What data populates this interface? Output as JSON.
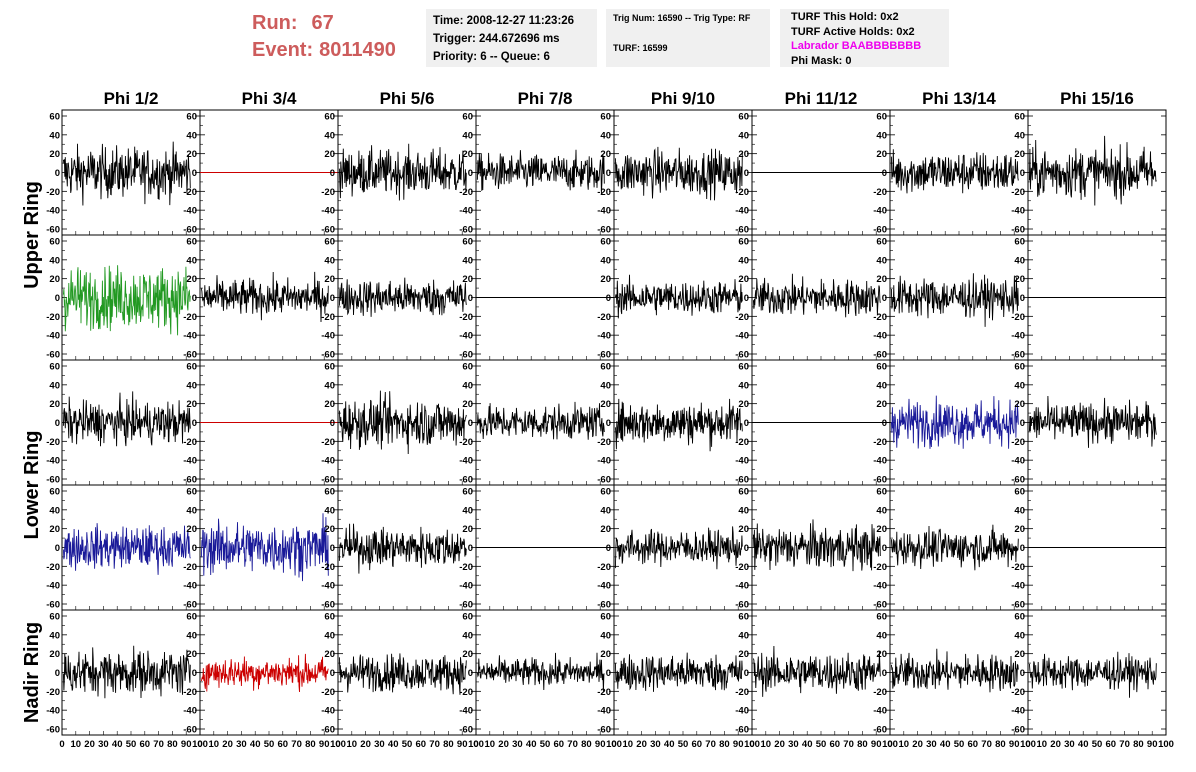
{
  "header": {
    "run_label": "Run:",
    "run_value": "67",
    "event_label": "Event:",
    "event_value": "8011490",
    "time": "Time: 2008-12-27 11:23:26",
    "trigger": "Trigger: 244.672696 ms",
    "priority_queue": "Priority: 6 -- Queue: 6",
    "trig_num_type": "Trig Num: 16590 -- Trig Type: RF",
    "turf": "TURF: 16599",
    "turf_this_hold": "TURF This Hold: 0x2",
    "turf_active_holds": "TURF Active Holds: 0x2",
    "labrador": "Labrador BAABBBBBBB",
    "phi_mask": "Phi Mask: 0",
    "colors": {
      "run_text": "#cd5c5c",
      "labrador_text": "#ee00ee",
      "info_bg": "#f0f0f0"
    }
  },
  "chart_data": {
    "type": "line",
    "columns": [
      "Phi 1/2",
      "Phi 3/4",
      "Phi 5/6",
      "Phi 7/8",
      "Phi 9/10",
      "Phi 11/12",
      "Phi 13/14",
      "Phi 15/16"
    ],
    "ring_labels": [
      {
        "label": "Upper Ring",
        "rows": [
          0,
          1
        ]
      },
      {
        "label": "Lower Ring",
        "rows": [
          2,
          3
        ]
      },
      {
        "label": "Nadir Ring",
        "rows": [
          4
        ]
      }
    ],
    "xlim": [
      0,
      100
    ],
    "ylim": [
      -60,
      60
    ],
    "x_ticks": [
      0,
      10,
      20,
      30,
      40,
      50,
      60,
      70,
      80,
      90,
      100
    ],
    "y_ticks": [
      -60,
      -40,
      -20,
      0,
      20,
      40,
      60
    ],
    "colors": {
      "black": "#000000",
      "red": "#cc0000",
      "green": "#229922",
      "blue": "#1a1a99"
    },
    "panels": [
      [
        {
          "color": "black",
          "trace": "noise",
          "amp": 18
        },
        {
          "color": "red",
          "trace": "flat",
          "amp": 0
        },
        {
          "color": "black",
          "trace": "noise",
          "amp": 16
        },
        {
          "color": "black",
          "trace": "noise",
          "amp": 13
        },
        {
          "color": "black",
          "trace": "noise",
          "amp": 16
        },
        {
          "color": "black",
          "trace": "flat",
          "amp": 0
        },
        {
          "color": "black",
          "trace": "noise",
          "amp": 15
        },
        {
          "color": "black",
          "trace": "noise",
          "amp": 18
        }
      ],
      [
        {
          "color": "green",
          "trace": "noise",
          "amp": 22
        },
        {
          "color": "black",
          "trace": "noise",
          "amp": 13
        },
        {
          "color": "black",
          "trace": "noise",
          "amp": 13
        },
        {
          "color": "black",
          "trace": "flat",
          "amp": 0
        },
        {
          "color": "black",
          "trace": "noise",
          "amp": 12
        },
        {
          "color": "black",
          "trace": "noise",
          "amp": 13
        },
        {
          "color": "black",
          "trace": "noise",
          "amp": 14
        },
        {
          "color": "black",
          "trace": "flat",
          "amp": 0
        }
      ],
      [
        {
          "color": "black",
          "trace": "noise",
          "amp": 15
        },
        {
          "color": "red",
          "trace": "flat",
          "amp": 0
        },
        {
          "color": "black",
          "trace": "noise",
          "amp": 17
        },
        {
          "color": "black",
          "trace": "noise",
          "amp": 12
        },
        {
          "color": "black",
          "trace": "noise",
          "amp": 15
        },
        {
          "color": "black",
          "trace": "flat",
          "amp": 0
        },
        {
          "color": "blue",
          "trace": "noise",
          "amp": 16
        },
        {
          "color": "black",
          "trace": "noise",
          "amp": 14
        }
      ],
      [
        {
          "color": "blue",
          "trace": "noise",
          "amp": 15
        },
        {
          "color": "blue",
          "trace": "noise",
          "amp": 18
        },
        {
          "color": "black",
          "trace": "noise",
          "amp": 14
        },
        {
          "color": "black",
          "trace": "flat",
          "amp": 0
        },
        {
          "color": "black",
          "trace": "noise",
          "amp": 12
        },
        {
          "color": "black",
          "trace": "noise",
          "amp": 15
        },
        {
          "color": "black",
          "trace": "noise",
          "amp": 13
        },
        {
          "color": "black",
          "trace": "flat",
          "amp": 0
        }
      ],
      [
        {
          "color": "black",
          "trace": "noise",
          "amp": 16
        },
        {
          "color": "red",
          "trace": "noise",
          "amp": 11
        },
        {
          "color": "black",
          "trace": "noise",
          "amp": 13
        },
        {
          "color": "black",
          "trace": "noise",
          "amp": 10
        },
        {
          "color": "black",
          "trace": "noise",
          "amp": 13
        },
        {
          "color": "black",
          "trace": "noise",
          "amp": 14
        },
        {
          "color": "black",
          "trace": "noise",
          "amp": 13
        },
        {
          "color": "black",
          "trace": "noise",
          "amp": 12
        }
      ]
    ]
  }
}
